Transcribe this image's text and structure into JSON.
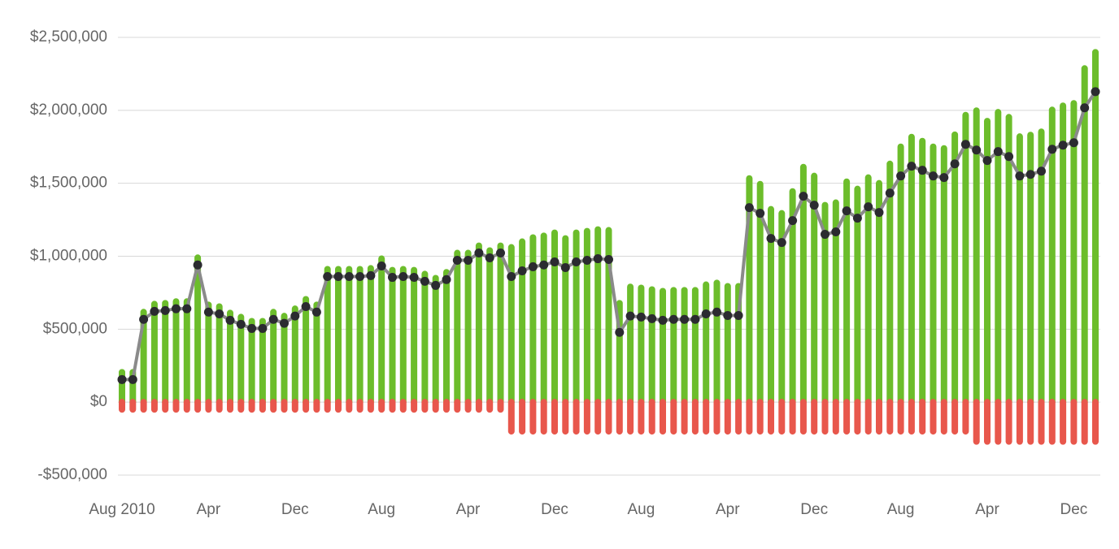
{
  "chart_data": {
    "type": "bar",
    "categories": [
      "Aug 2010",
      null,
      null,
      null,
      null,
      null,
      null,
      null,
      "Apr",
      null,
      null,
      null,
      null,
      null,
      null,
      null,
      "Dec",
      null,
      null,
      null,
      null,
      null,
      null,
      null,
      "Aug",
      null,
      null,
      null,
      null,
      null,
      null,
      null,
      "Apr",
      null,
      null,
      null,
      null,
      null,
      null,
      null,
      "Dec",
      null,
      null,
      null,
      null,
      null,
      null,
      null,
      "Aug",
      null,
      null,
      null,
      null,
      null,
      null,
      null,
      "Apr",
      null,
      null,
      null,
      null,
      null,
      null,
      null,
      "Dec",
      null,
      null,
      null,
      null,
      null,
      null,
      null,
      "Aug",
      null,
      null,
      null,
      null,
      null,
      null,
      null,
      "Apr",
      null,
      null,
      null,
      null,
      null,
      null,
      null,
      "Dec",
      null,
      null
    ],
    "series": [
      {
        "type": "bar",
        "color": "#6cbd2b",
        "values": [
          205000,
          205000,
          617000,
          672000,
          678000,
          690000,
          690000,
          990000,
          667000,
          655000,
          611000,
          583000,
          555000,
          555000,
          617000,
          590000,
          640000,
          705000,
          667000,
          911000,
          911000,
          911000,
          911000,
          917000,
          983000,
          905000,
          911000,
          905000,
          878000,
          850000,
          890000,
          1022000,
          1022000,
          1072000,
          1039000,
          1072000,
          1061000,
          1100000,
          1128000,
          1140000,
          1161000,
          1122000,
          1161000,
          1172000,
          1183000,
          1178000,
          678000,
          790000,
          783000,
          772000,
          761000,
          767000,
          767000,
          767000,
          805000,
          817000,
          794000,
          794000,
          1533000,
          1494000,
          1322000,
          1294000,
          1444000,
          1611000,
          1550000,
          1350000,
          1367000,
          1511000,
          1461000,
          1539000,
          1500000,
          1633000,
          1750000,
          1817000,
          1789000,
          1750000,
          1739000,
          1833000,
          1967000,
          1998000,
          1926000,
          1987000,
          1953000,
          1820000,
          1831000,
          1853000,
          2003000,
          2031000,
          2048000,
          2287000,
          2398000
        ]
      },
      {
        "type": "bar",
        "color": "#e8574c",
        "values": [
          -50000,
          -50000,
          -50000,
          -50000,
          -50000,
          -50000,
          -50000,
          -50000,
          -50000,
          -50000,
          -50000,
          -50000,
          -50000,
          -50000,
          -50000,
          -50000,
          -50000,
          -50000,
          -50000,
          -50000,
          -50000,
          -50000,
          -50000,
          -50000,
          -50000,
          -50000,
          -50000,
          -50000,
          -50000,
          -50000,
          -50000,
          -50000,
          -50000,
          -50000,
          -50000,
          -50000,
          -200000,
          -200000,
          -200000,
          -200000,
          -200000,
          -200000,
          -200000,
          -200000,
          -200000,
          -200000,
          -200000,
          -200000,
          -200000,
          -200000,
          -200000,
          -200000,
          -200000,
          -200000,
          -200000,
          -200000,
          -200000,
          -200000,
          -200000,
          -200000,
          -200000,
          -200000,
          -200000,
          -200000,
          -200000,
          -200000,
          -200000,
          -200000,
          -200000,
          -200000,
          -200000,
          -200000,
          -200000,
          -200000,
          -200000,
          -200000,
          -200000,
          -200000,
          -200000,
          -270000,
          -270000,
          -270000,
          -270000,
          -270000,
          -270000,
          -270000,
          -270000,
          -270000,
          -270000,
          -270000,
          -270000
        ]
      },
      {
        "type": "line",
        "color": "#8a8a8a",
        "marker_color": "#2b2b30",
        "values": [
          155000,
          155000,
          567000,
          622000,
          628000,
          640000,
          640000,
          940000,
          617000,
          605000,
          561000,
          533000,
          505000,
          505000,
          567000,
          540000,
          590000,
          655000,
          617000,
          861000,
          861000,
          861000,
          861000,
          867000,
          933000,
          855000,
          861000,
          855000,
          828000,
          800000,
          840000,
          972000,
          972000,
          1022000,
          989000,
          1022000,
          861000,
          900000,
          928000,
          940000,
          961000,
          922000,
          961000,
          972000,
          983000,
          978000,
          478000,
          590000,
          583000,
          572000,
          561000,
          567000,
          567000,
          567000,
          605000,
          617000,
          594000,
          594000,
          1333000,
          1294000,
          1122000,
          1094000,
          1244000,
          1411000,
          1350000,
          1150000,
          1167000,
          1311000,
          1261000,
          1339000,
          1300000,
          1433000,
          1550000,
          1617000,
          1589000,
          1550000,
          1539000,
          1633000,
          1767000,
          1728000,
          1656000,
          1717000,
          1683000,
          1550000,
          1561000,
          1583000,
          1733000,
          1761000,
          1778000,
          2017000,
          2128000
        ]
      }
    ],
    "ylim": [
      -500000,
      2500000
    ],
    "yticks": [
      {
        "value": -500000,
        "label": "-$500,000"
      },
      {
        "value": 0,
        "label": "$0"
      },
      {
        "value": 500000,
        "label": "$500,000"
      },
      {
        "value": 1000000,
        "label": "$1,000,000"
      },
      {
        "value": 1500000,
        "label": "$1,500,000"
      },
      {
        "value": 2000000,
        "label": "$2,000,000"
      },
      {
        "value": 2500000,
        "label": "$2,500,000"
      }
    ],
    "grid": true
  }
}
